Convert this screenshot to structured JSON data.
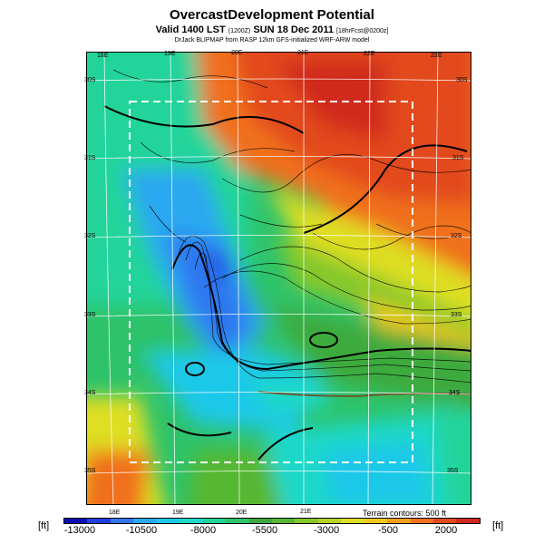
{
  "header": {
    "title": "OvercastDevelopment Potential",
    "valid_main": "Valid 1400 LST",
    "valid_small1": "(1200Z)",
    "valid_date": "SUN 18 Dec 2011",
    "valid_small2": "[18hrFcst@0200z]",
    "credit": "DrJack BLIPMAP from RASP 12km GFS-initialized WRF-ARW model"
  },
  "map": {
    "lon_labels_top": [
      "18E",
      "19E",
      "20E",
      "21E",
      "22E",
      "23E"
    ],
    "lon_labels_bottom": [
      "18E",
      "19E",
      "20E",
      "21E"
    ],
    "lat_labels_left": [
      "30S",
      "31S",
      "32S",
      "33S",
      "34S",
      "35S"
    ],
    "lat_labels_right": [
      "30S",
      "31S",
      "32S",
      "33S",
      "34S",
      "35S"
    ],
    "terrain_note": "Terrain contours: 500 ft"
  },
  "colorbar": {
    "unit_left": "[ft]",
    "unit_right": "[ft]",
    "tick_labels": [
      "-13000",
      "-10500",
      "-8000",
      "-5500",
      "-3000",
      "-500",
      "2000"
    ],
    "colors": [
      "#0a10b0",
      "#1f3fe0",
      "#2f78f0",
      "#2aa8f0",
      "#1ec8e8",
      "#1ed8c8",
      "#22d49a",
      "#2ec36a",
      "#3caa3c",
      "#56b832",
      "#86c82c",
      "#b4d426",
      "#dede22",
      "#f0c81e",
      "#f59e1c",
      "#f0701e",
      "#e24a1c",
      "#d02a1a"
    ]
  }
}
